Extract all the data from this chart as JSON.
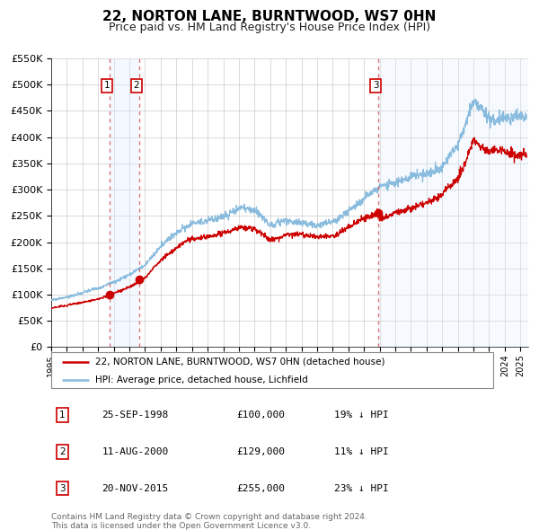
{
  "title": "22, NORTON LANE, BURNTWOOD, WS7 0HN",
  "subtitle": "Price paid vs. HM Land Registry's House Price Index (HPI)",
  "ylim": [
    0,
    550000
  ],
  "yticks": [
    0,
    50000,
    100000,
    150000,
    200000,
    250000,
    300000,
    350000,
    400000,
    450000,
    500000,
    550000
  ],
  "ytick_labels": [
    "£0",
    "£50K",
    "£100K",
    "£150K",
    "£200K",
    "£250K",
    "£300K",
    "£350K",
    "£400K",
    "£450K",
    "£500K",
    "£550K"
  ],
  "xlim_start": 1995.0,
  "xlim_end": 2025.5,
  "sale_dates": [
    1998.73,
    2000.61,
    2015.9
  ],
  "sale_prices": [
    100000,
    129000,
    255000
  ],
  "sale_labels": [
    "1",
    "2",
    "3"
  ],
  "bg_band_x1": 1998.73,
  "bg_band_x2": 2000.61,
  "bg_band2_x1": 2015.9,
  "bg_band2_x2": 2025.5,
  "grid_color": "#cccccc",
  "sale_line_color": "#cc0000",
  "hpi_line_color": "#88bbdd",
  "sale_dot_color": "#cc0000",
  "vline_color": "#dd6666",
  "band_color": "#ddeeff",
  "legend_sale_label": "22, NORTON LANE, BURNTWOOD, WS7 0HN (detached house)",
  "legend_hpi_label": "HPI: Average price, detached house, Lichfield",
  "table_entries": [
    {
      "num": "1",
      "date": "25-SEP-1998",
      "price": "£100,000",
      "hpi": "19% ↓ HPI"
    },
    {
      "num": "2",
      "date": "11-AUG-2000",
      "price": "£129,000",
      "hpi": "11% ↓ HPI"
    },
    {
      "num": "3",
      "date": "20-NOV-2015",
      "price": "£255,000",
      "hpi": "23% ↓ HPI"
    }
  ],
  "footnote": "Contains HM Land Registry data © Crown copyright and database right 2024.\nThis data is licensed under the Open Government Licence v3.0.",
  "title_fontsize": 11,
  "subtitle_fontsize": 9
}
